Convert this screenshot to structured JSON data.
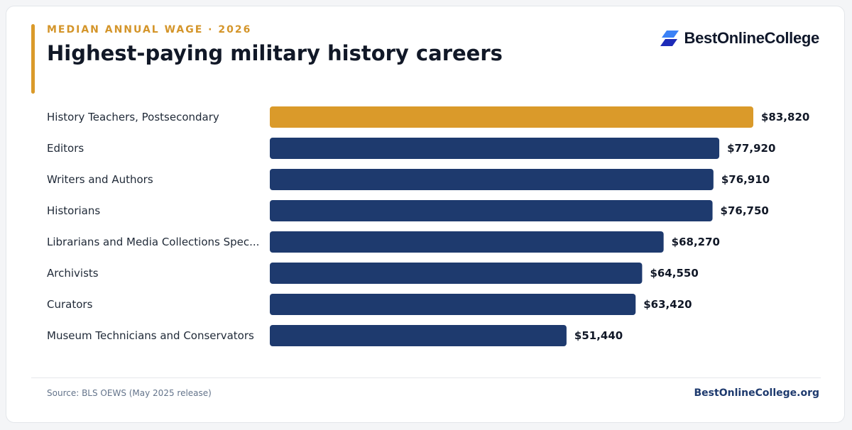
{
  "header": {
    "eyebrow": "MEDIAN ANNUAL WAGE · 2026",
    "title": "Highest-paying military history careers"
  },
  "brand": {
    "logo_text": "BestOnlineCollege",
    "logo_icon": "stacked-parallelogram-logo-icon"
  },
  "footer": {
    "source": "Source: BLS OEWS (May 2025 release)",
    "site": "BestOnlineCollege.org"
  },
  "colors": {
    "highlight": "#da9a2a",
    "bar": "#1e3a6e",
    "eyebrow": "#d4952a",
    "logo_dark": "#1d2bb8",
    "logo_light": "#3b82f6"
  },
  "chart_data": {
    "type": "bar",
    "orientation": "horizontal",
    "categories": [
      "History Teachers, Postsecondary",
      "Editors",
      "Writers and Authors",
      "Historians",
      "Librarians and Media Collections Spec...",
      "Archivists",
      "Curators",
      "Museum Technicians and Conservators"
    ],
    "values": [
      83820,
      77920,
      76910,
      76750,
      68270,
      64550,
      63420,
      51440
    ],
    "value_labels": [
      "$83,820",
      "$77,920",
      "$76,910",
      "$76,750",
      "$68,270",
      "$64,550",
      "$63,420",
      "$51,440"
    ],
    "highlight_index": 0,
    "xlim": [
      0,
      83820
    ],
    "grid": false,
    "legend": "none"
  }
}
